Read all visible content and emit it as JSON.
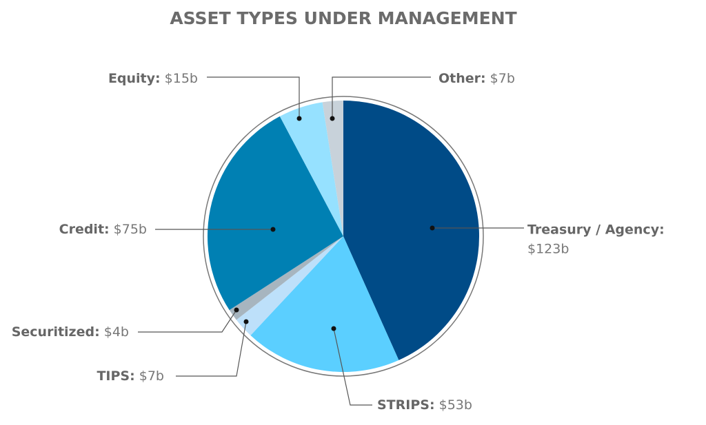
{
  "chart_data": {
    "type": "pie",
    "title": "ASSET TYPES UNDER MANAGEMENT",
    "categories": [
      "Treasury / Agency:",
      "STRIPS:",
      "TIPS:",
      "Securitized:",
      "Credit:",
      "Equity:",
      "Other:"
    ],
    "values": [
      123,
      53,
      7,
      4,
      75,
      15,
      7
    ],
    "value_labels": [
      "$123b",
      "$53b",
      "$7b",
      "$4b",
      "$75b",
      "$15b",
      "$7b"
    ],
    "colors": [
      "#004b87",
      "#5bcfff",
      "#bde0fa",
      "#a7b5bf",
      "#0080b3",
      "#96e1ff",
      "#c8d2da"
    ]
  }
}
